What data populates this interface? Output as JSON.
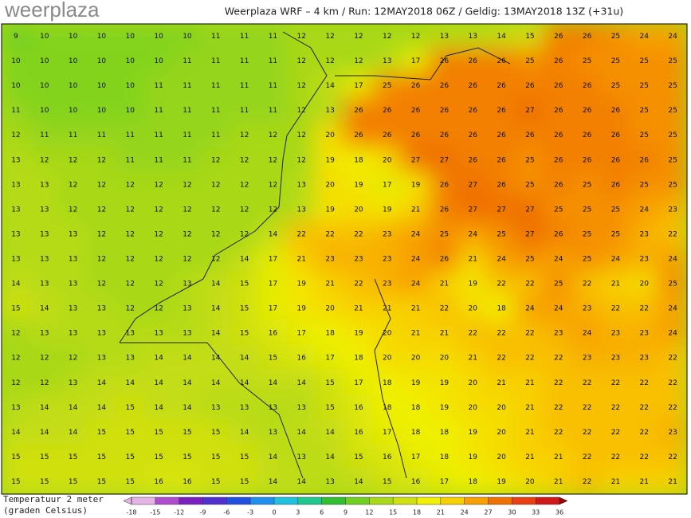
{
  "header": {
    "logo": "weerplaza",
    "title": "Weerplaza WRF – 4 km / Run: 12MAY2018 06Z / Geldig: 13MAY2018 13Z (+31u)"
  },
  "map": {
    "rows": [
      [
        9,
        10,
        10,
        10,
        10,
        10,
        10,
        11,
        11,
        11,
        12,
        12,
        12,
        12,
        12,
        13,
        13,
        14,
        15,
        26,
        26,
        25,
        24,
        24
      ],
      [
        10,
        10,
        10,
        10,
        10,
        10,
        11,
        11,
        11,
        11,
        12,
        12,
        12,
        13,
        17,
        26,
        26,
        26,
        25,
        26,
        25,
        25,
        25,
        25
      ],
      [
        10,
        10,
        10,
        10,
        10,
        11,
        11,
        11,
        11,
        11,
        12,
        14,
        17,
        25,
        26,
        26,
        26,
        26,
        26,
        26,
        26,
        25,
        25,
        25
      ],
      [
        11,
        10,
        10,
        10,
        10,
        11,
        11,
        11,
        11,
        11,
        12,
        13,
        26,
        26,
        26,
        26,
        26,
        26,
        27,
        26,
        26,
        26,
        25,
        25
      ],
      [
        12,
        11,
        11,
        11,
        11,
        11,
        11,
        11,
        12,
        12,
        12,
        20,
        26,
        26,
        26,
        26,
        26,
        26,
        26,
        26,
        26,
        26,
        25,
        25
      ],
      [
        13,
        12,
        12,
        12,
        11,
        11,
        11,
        12,
        12,
        12,
        12,
        19,
        18,
        20,
        27,
        27,
        26,
        26,
        25,
        26,
        26,
        26,
        26,
        25
      ],
      [
        13,
        13,
        12,
        12,
        12,
        12,
        12,
        12,
        12,
        12,
        13,
        20,
        19,
        17,
        19,
        26,
        27,
        26,
        25,
        26,
        25,
        26,
        25,
        25
      ],
      [
        13,
        13,
        12,
        12,
        12,
        12,
        12,
        12,
        12,
        12,
        13,
        19,
        20,
        19,
        21,
        26,
        27,
        27,
        27,
        25,
        25,
        25,
        24,
        23
      ],
      [
        13,
        13,
        13,
        12,
        12,
        12,
        12,
        12,
        12,
        14,
        22,
        22,
        22,
        23,
        24,
        25,
        24,
        25,
        27,
        26,
        25,
        25,
        23,
        22
      ],
      [
        13,
        13,
        13,
        12,
        12,
        12,
        12,
        12,
        14,
        17,
        21,
        23,
        23,
        23,
        24,
        26,
        21,
        24,
        25,
        24,
        25,
        24,
        23,
        24
      ],
      [
        14,
        13,
        13,
        12,
        12,
        12,
        13,
        14,
        15,
        17,
        19,
        21,
        22,
        23,
        24,
        21,
        19,
        22,
        22,
        25,
        22,
        21,
        20,
        25
      ],
      [
        15,
        14,
        13,
        13,
        12,
        12,
        13,
        14,
        15,
        17,
        19,
        20,
        21,
        21,
        21,
        22,
        20,
        18,
        24,
        24,
        23,
        22,
        22,
        24
      ],
      [
        12,
        13,
        13,
        13,
        13,
        13,
        13,
        14,
        15,
        16,
        17,
        18,
        19,
        20,
        21,
        21,
        22,
        22,
        22,
        23,
        24,
        23,
        23,
        24
      ],
      [
        12,
        12,
        12,
        13,
        13,
        14,
        14,
        14,
        14,
        15,
        16,
        17,
        18,
        20,
        20,
        20,
        21,
        22,
        22,
        22,
        23,
        23,
        23,
        22
      ],
      [
        12,
        12,
        13,
        14,
        14,
        14,
        14,
        14,
        14,
        14,
        14,
        15,
        17,
        18,
        19,
        19,
        20,
        21,
        21,
        22,
        22,
        22,
        22,
        22
      ],
      [
        13,
        14,
        14,
        14,
        15,
        14,
        14,
        13,
        13,
        13,
        13,
        15,
        16,
        18,
        18,
        19,
        20,
        20,
        21,
        22,
        22,
        22,
        22,
        22
      ],
      [
        14,
        14,
        14,
        15,
        15,
        15,
        15,
        15,
        14,
        13,
        14,
        14,
        16,
        17,
        18,
        18,
        19,
        20,
        21,
        22,
        22,
        22,
        22,
        23
      ],
      [
        15,
        15,
        15,
        15,
        15,
        15,
        15,
        15,
        15,
        14,
        13,
        14,
        15,
        16,
        17,
        18,
        19,
        20,
        21,
        21,
        22,
        22,
        22,
        22
      ],
      [
        15,
        15,
        15,
        15,
        15,
        16,
        16,
        15,
        15,
        14,
        14,
        13,
        14,
        15,
        16,
        17,
        18,
        19,
        20,
        21,
        22,
        21,
        21,
        21
      ]
    ]
  },
  "legend": {
    "label_line1": "Temperatuur 2 meter",
    "label_line2": "(graden Celsius)",
    "ticks": [
      -18,
      -15,
      -12,
      -9,
      -6,
      -3,
      0,
      3,
      6,
      9,
      12,
      15,
      18,
      21,
      24,
      27,
      30,
      33,
      36
    ],
    "colors": [
      "#e6b3e6",
      "#b04cd0",
      "#7a1fc0",
      "#5030d0",
      "#2050e0",
      "#2090f0",
      "#20c0e0",
      "#20c890",
      "#30c030",
      "#70d020",
      "#a8d818",
      "#d0e010",
      "#f0f000",
      "#f8d000",
      "#f8a000",
      "#f07000",
      "#e84010",
      "#d01818",
      "#a00000"
    ]
  }
}
